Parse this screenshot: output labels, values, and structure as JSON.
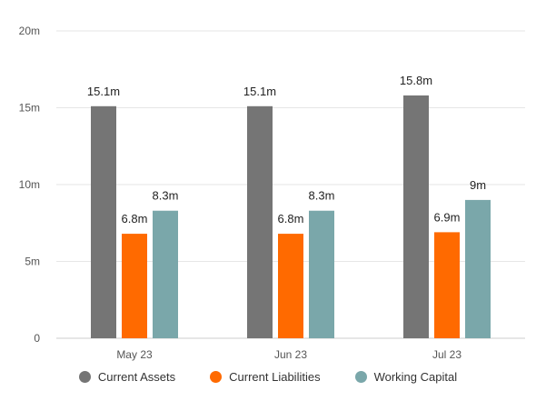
{
  "chart_data": {
    "type": "bar",
    "categories": [
      "May 23",
      "Jun 23",
      "Jul 23"
    ],
    "series": [
      {
        "name": "Current Assets",
        "values": [
          15.1,
          15.1,
          15.8
        ],
        "labels": [
          "15.1m",
          "15.1m",
          "15.8m"
        ],
        "color": "#757575"
      },
      {
        "name": "Current Liabilities",
        "values": [
          6.8,
          6.8,
          6.9
        ],
        "labels": [
          "6.8m",
          "6.8m",
          "6.9m"
        ],
        "color": "#ff6a00"
      },
      {
        "name": "Working Capital",
        "values": [
          8.3,
          8.3,
          9.0
        ],
        "labels": [
          "8.3m",
          "8.3m",
          "9m"
        ],
        "color": "#7aa7aa"
      }
    ],
    "yticks": [
      0,
      5,
      10,
      15,
      20
    ],
    "ytick_labels": [
      "0",
      "5m",
      "10m",
      "15m",
      "20m"
    ],
    "ylim": [
      0,
      20
    ],
    "grid": true,
    "legend_position": "bottom"
  }
}
